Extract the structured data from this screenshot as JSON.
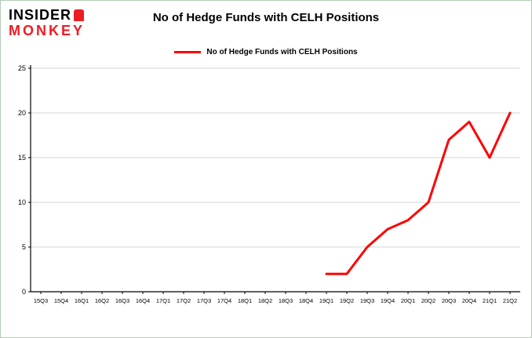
{
  "page": {
    "logo": {
      "line1": "INSIDER",
      "line2": "MONKEY"
    },
    "title": "No of Hedge Funds with CELH Positions",
    "legend_label": "No of Hedge Funds with CELH Positions"
  },
  "colors": {
    "line": "#ff0000",
    "grid": "#d6d6d6",
    "axis": "#000000",
    "border": "#b5cdb5",
    "logo_red": "#ed1c24"
  },
  "chart_data": {
    "type": "line",
    "title": "No of Hedge Funds with CELH Positions",
    "xlabel": "",
    "ylabel": "",
    "ylim": [
      0,
      25
    ],
    "yticks": [
      0,
      5,
      10,
      15,
      20,
      25
    ],
    "grid": true,
    "legend_position": "top",
    "categories": [
      "15Q3",
      "15Q4",
      "16Q1",
      "16Q2",
      "16Q3",
      "16Q4",
      "17Q1",
      "17Q2",
      "17Q3",
      "17Q4",
      "18Q1",
      "18Q2",
      "18Q3",
      "18Q4",
      "19Q1",
      "19Q2",
      "19Q3",
      "19Q4",
      "20Q1",
      "20Q2",
      "20Q3",
      "20Q4",
      "21Q1",
      "21Q2"
    ],
    "series": [
      {
        "name": "No of Hedge Funds with CELH Positions",
        "color": "#ff0000",
        "values": [
          null,
          null,
          null,
          null,
          null,
          null,
          null,
          null,
          null,
          null,
          null,
          null,
          null,
          null,
          2,
          2,
          5,
          7,
          8,
          10,
          17,
          19,
          15,
          20
        ]
      }
    ]
  }
}
